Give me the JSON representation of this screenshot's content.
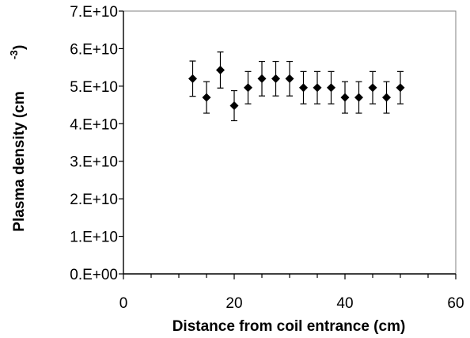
{
  "chart_data": {
    "type": "scatter",
    "title": "",
    "xlabel": "Distance from coil entrance (cm)",
    "ylabel": "Plasma density (cm",
    "ylabel_superscript": "-3",
    "ylabel_close": ")",
    "xlim": [
      0,
      60
    ],
    "ylim": [
      0,
      70000000000
    ],
    "x_ticks": [
      0,
      20,
      40,
      60
    ],
    "x_tick_labels": [
      "0",
      "20",
      "40",
      "60"
    ],
    "y_ticks": [
      0,
      10000000000,
      20000000000,
      30000000000,
      40000000000,
      50000000000,
      60000000000,
      70000000000
    ],
    "y_tick_labels": [
      "0.E+00",
      "1.E+10",
      "2.E+10",
      "3.E+10",
      "4.E+10",
      "5.E+10",
      "6.E+10",
      "7.E+10"
    ],
    "grid": false,
    "legend": false,
    "marker_color": "#000000",
    "series": [
      {
        "points": [
          {
            "x": 12.5,
            "y": 52000000000,
            "err": 4700000000
          },
          {
            "x": 15.0,
            "y": 47000000000,
            "err": 4200000000
          },
          {
            "x": 17.5,
            "y": 54300000000,
            "err": 4800000000
          },
          {
            "x": 20.0,
            "y": 44800000000,
            "err": 4000000000
          },
          {
            "x": 22.5,
            "y": 49600000000,
            "err": 4300000000
          },
          {
            "x": 25.0,
            "y": 52000000000,
            "err": 4600000000
          },
          {
            "x": 27.5,
            "y": 52000000000,
            "err": 4600000000
          },
          {
            "x": 30.0,
            "y": 52000000000,
            "err": 4600000000
          },
          {
            "x": 32.5,
            "y": 49600000000,
            "err": 4300000000
          },
          {
            "x": 35.0,
            "y": 49600000000,
            "err": 4300000000
          },
          {
            "x": 37.5,
            "y": 49600000000,
            "err": 4300000000
          },
          {
            "x": 40.0,
            "y": 47000000000,
            "err": 4200000000
          },
          {
            "x": 42.5,
            "y": 47000000000,
            "err": 4200000000
          },
          {
            "x": 45.0,
            "y": 49600000000,
            "err": 4300000000
          },
          {
            "x": 47.5,
            "y": 47000000000,
            "err": 4200000000
          },
          {
            "x": 50.0,
            "y": 49600000000,
            "err": 4300000000
          }
        ]
      }
    ]
  }
}
